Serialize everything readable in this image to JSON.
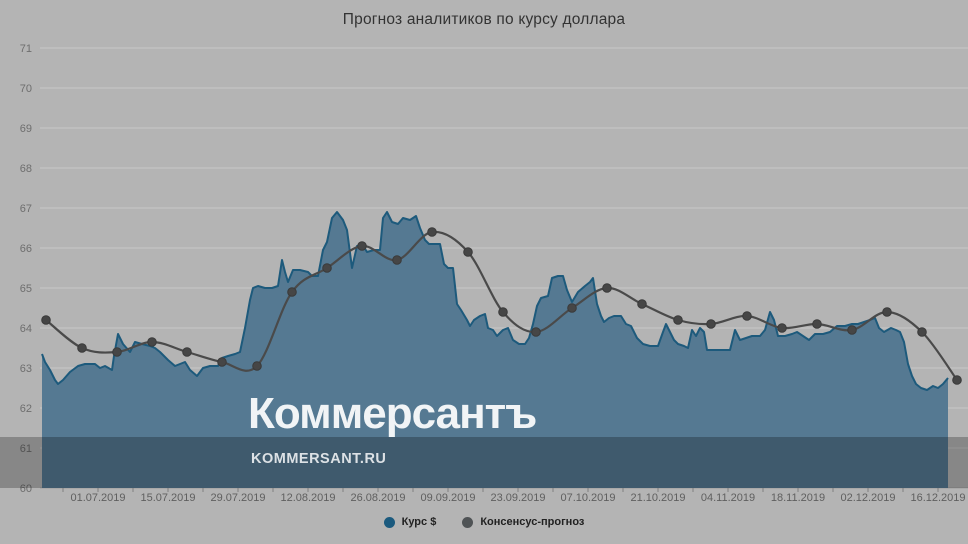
{
  "title": "Прогноз аналитиков по курсу доллара",
  "watermark": {
    "logo": "Коммерсантъ",
    "url": "KOMMERSANT.RU"
  },
  "legend": [
    {
      "label": "Курс $",
      "color": "#1b5a7e"
    },
    {
      "label": "Консенсус-прогноз",
      "color": "#4f5355"
    }
  ],
  "colors": {
    "background": "#b4b4b4",
    "overlay_band": "rgba(0,0,0,0.25)",
    "area_fill": "#557992",
    "area_line": "#1d5a7c",
    "forecast_line": "#4a4a4a",
    "forecast_dot": "#464646",
    "grid": "#c4c4c4",
    "axis_line": "#a2a2a2",
    "minor_tick": "#7f7f7f",
    "y_label_text": "#6e6e6e",
    "x_label_text": "#5f5f5f"
  },
  "chart_data": {
    "type": "area",
    "title": "Прогноз аналитиков по курсу доллара",
    "legend_position": "bottom",
    "grid": true,
    "y_axis": {
      "min": 60,
      "max": 71,
      "ticks": [
        60,
        61,
        62,
        63,
        64,
        65,
        66,
        67,
        68,
        69,
        70,
        71
      ]
    },
    "x_axis": {
      "tick_labels": [
        "01.07.2019",
        "15.07.2019",
        "29.07.2019",
        "12.08.2019",
        "26.08.2019",
        "09.09.2019",
        "23.09.2019",
        "07.10.2019",
        "21.10.2019",
        "04.11.2019",
        "18.11.2019",
        "02.12.2019",
        "16.12.2019"
      ],
      "first_label_day": 11.2,
      "label_interval_days": 14,
      "minor_tick_interval_days": 7
    },
    "series": [
      {
        "name": "Курс $",
        "type": "area",
        "points": [
          [
            0,
            63.35
          ],
          [
            0.6,
            63.15
          ],
          [
            1.6,
            62.95
          ],
          [
            2.6,
            62.7
          ],
          [
            3.2,
            62.6
          ],
          [
            4.2,
            62.7
          ],
          [
            5.6,
            62.9
          ],
          [
            7.2,
            63.05
          ],
          [
            8.6,
            63.1
          ],
          [
            10.6,
            63.1
          ],
          [
            11.6,
            63.0
          ],
          [
            12.6,
            63.05
          ],
          [
            14,
            62.95
          ],
          [
            14.4,
            63.3
          ],
          [
            15.2,
            63.85
          ],
          [
            16.2,
            63.6
          ],
          [
            17.6,
            63.4
          ],
          [
            18.6,
            63.65
          ],
          [
            20,
            63.6
          ],
          [
            21.6,
            63.55
          ],
          [
            22.6,
            63.5
          ],
          [
            23.6,
            63.4
          ],
          [
            25.2,
            63.2
          ],
          [
            26.6,
            63.05
          ],
          [
            27.6,
            63.1
          ],
          [
            28.6,
            63.15
          ],
          [
            29.6,
            62.95
          ],
          [
            31,
            62.8
          ],
          [
            32.2,
            63.0
          ],
          [
            33.6,
            63.05
          ],
          [
            35.2,
            63.05
          ],
          [
            36,
            63.25
          ],
          [
            37.2,
            63.3
          ],
          [
            38.6,
            63.35
          ],
          [
            39.6,
            63.4
          ],
          [
            40.6,
            64.0
          ],
          [
            41.6,
            64.7
          ],
          [
            42.2,
            65.0
          ],
          [
            43.2,
            65.05
          ],
          [
            44.6,
            65.0
          ],
          [
            46,
            65.0
          ],
          [
            47.2,
            65.05
          ],
          [
            48,
            65.7
          ],
          [
            48.6,
            65.4
          ],
          [
            49.2,
            65.15
          ],
          [
            50.2,
            65.45
          ],
          [
            51.6,
            65.45
          ],
          [
            53.2,
            65.4
          ],
          [
            54,
            65.3
          ],
          [
            55.2,
            65.3
          ],
          [
            56.2,
            65.95
          ],
          [
            57,
            66.15
          ],
          [
            58,
            66.75
          ],
          [
            59,
            66.9
          ],
          [
            60.2,
            66.7
          ],
          [
            61,
            66.45
          ],
          [
            62,
            65.5
          ],
          [
            63,
            66.05
          ],
          [
            64,
            66.1
          ],
          [
            65,
            65.9
          ],
          [
            66.4,
            65.95
          ],
          [
            67.6,
            65.95
          ],
          [
            68.2,
            66.75
          ],
          [
            69,
            66.9
          ],
          [
            70,
            66.65
          ],
          [
            71.2,
            66.6
          ],
          [
            72.2,
            66.75
          ],
          [
            73.6,
            66.7
          ],
          [
            74.8,
            66.8
          ],
          [
            75.6,
            66.5
          ],
          [
            76.6,
            66.2
          ],
          [
            77.4,
            66.1
          ],
          [
            78.8,
            66.1
          ],
          [
            79.6,
            66.1
          ],
          [
            80.4,
            65.6
          ],
          [
            81.2,
            65.5
          ],
          [
            82.2,
            65.5
          ],
          [
            83,
            64.6
          ],
          [
            83.8,
            64.45
          ],
          [
            85,
            64.2
          ],
          [
            85.6,
            64.05
          ],
          [
            86.4,
            64.2
          ],
          [
            87.6,
            64.3
          ],
          [
            88.6,
            64.35
          ],
          [
            89.2,
            64.0
          ],
          [
            90.2,
            63.95
          ],
          [
            91,
            63.8
          ],
          [
            92.2,
            63.95
          ],
          [
            93.2,
            64.0
          ],
          [
            94.2,
            63.7
          ],
          [
            95.4,
            63.6
          ],
          [
            96.6,
            63.6
          ],
          [
            97.4,
            63.75
          ],
          [
            98.2,
            64.1
          ],
          [
            99,
            64.55
          ],
          [
            99.8,
            64.75
          ],
          [
            101.2,
            64.8
          ],
          [
            102,
            65.25
          ],
          [
            103.2,
            65.3
          ],
          [
            104.2,
            65.3
          ],
          [
            105,
            64.95
          ],
          [
            106,
            64.65
          ],
          [
            107.2,
            64.9
          ],
          [
            108.6,
            65.05
          ],
          [
            109.6,
            65.15
          ],
          [
            110.2,
            65.25
          ],
          [
            111,
            64.6
          ],
          [
            111.8,
            64.3
          ],
          [
            112.4,
            64.15
          ],
          [
            113.4,
            64.25
          ],
          [
            114.4,
            64.3
          ],
          [
            115.8,
            64.3
          ],
          [
            116.8,
            64.1
          ],
          [
            117.8,
            64.05
          ],
          [
            119,
            63.75
          ],
          [
            120.2,
            63.6
          ],
          [
            121.6,
            63.55
          ],
          [
            123.2,
            63.55
          ],
          [
            124.2,
            63.9
          ],
          [
            124.8,
            64.1
          ],
          [
            125.6,
            63.9
          ],
          [
            126.4,
            63.7
          ],
          [
            127.2,
            63.6
          ],
          [
            128.4,
            63.55
          ],
          [
            129.2,
            63.5
          ],
          [
            130,
            63.95
          ],
          [
            130.8,
            63.8
          ],
          [
            131.6,
            64.0
          ],
          [
            132.4,
            63.9
          ],
          [
            133,
            63.45
          ],
          [
            134.4,
            63.45
          ],
          [
            136,
            63.45
          ],
          [
            137.6,
            63.45
          ],
          [
            138.6,
            63.95
          ],
          [
            139.6,
            63.7
          ],
          [
            140.8,
            63.75
          ],
          [
            142,
            63.8
          ],
          [
            143.6,
            63.8
          ],
          [
            144.6,
            63.95
          ],
          [
            145.6,
            64.4
          ],
          [
            146.4,
            64.2
          ],
          [
            147.2,
            63.8
          ],
          [
            148.6,
            63.8
          ],
          [
            150,
            63.85
          ],
          [
            151,
            63.9
          ],
          [
            152.2,
            63.8
          ],
          [
            153.4,
            63.7
          ],
          [
            154.6,
            63.85
          ],
          [
            156.2,
            63.85
          ],
          [
            157.6,
            63.9
          ],
          [
            159,
            64.05
          ],
          [
            160.6,
            64.05
          ],
          [
            162,
            64.1
          ],
          [
            163.2,
            64.1
          ],
          [
            164.4,
            64.15
          ],
          [
            165.6,
            64.2
          ],
          [
            166.6,
            64.25
          ],
          [
            167.4,
            64.0
          ],
          [
            168.4,
            63.9
          ],
          [
            169.8,
            64.0
          ],
          [
            170.8,
            63.95
          ],
          [
            171.6,
            63.9
          ],
          [
            172.4,
            63.65
          ],
          [
            173.2,
            63.1
          ],
          [
            174,
            62.8
          ],
          [
            174.8,
            62.6
          ],
          [
            175.8,
            62.5
          ],
          [
            177,
            62.45
          ],
          [
            178.2,
            62.55
          ],
          [
            179.2,
            62.5
          ],
          [
            180.2,
            62.6
          ],
          [
            181.2,
            62.75
          ]
        ]
      },
      {
        "name": "Консенсус-прогноз",
        "type": "line_markers",
        "points": [
          [
            0.8,
            64.2
          ],
          [
            8,
            63.5
          ],
          [
            15,
            63.4
          ],
          [
            22,
            63.65
          ],
          [
            29,
            63.4
          ],
          [
            36,
            63.15
          ],
          [
            43,
            63.05
          ],
          [
            50,
            64.9
          ],
          [
            57,
            65.5
          ],
          [
            64,
            66.05
          ],
          [
            71,
            65.7
          ],
          [
            78,
            66.4
          ],
          [
            85.2,
            65.9
          ],
          [
            92.2,
            64.4
          ],
          [
            98.8,
            63.9
          ],
          [
            106,
            64.5
          ],
          [
            113,
            65.0
          ],
          [
            120,
            64.6
          ],
          [
            127.2,
            64.2
          ],
          [
            133.8,
            64.1
          ],
          [
            141,
            64.3
          ],
          [
            148,
            64.0
          ],
          [
            155,
            64.1
          ],
          [
            162,
            63.95
          ],
          [
            169,
            64.4
          ],
          [
            176,
            63.9
          ],
          [
            183,
            62.7
          ]
        ]
      }
    ]
  }
}
